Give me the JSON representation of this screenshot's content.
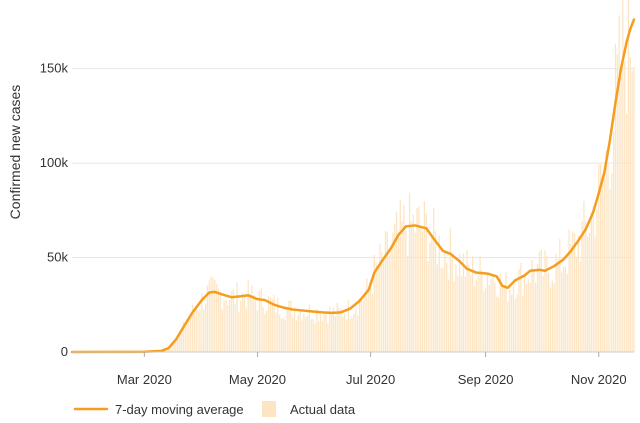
{
  "chart_data": {
    "type": "bar",
    "ylabel": "Confirmed new cases",
    "ylim": [
      0,
      180000
    ],
    "yticks": [
      0,
      50000,
      100000,
      150000
    ],
    "ytick_labels": [
      "0",
      "50k",
      "100k",
      "150k"
    ],
    "xlim": [
      "2020-01-22",
      "2020-11-20"
    ],
    "xticks": [
      "2020-03-01",
      "2020-05-01",
      "2020-07-01",
      "2020-09-01",
      "2020-11-01"
    ],
    "xtick_labels": [
      "Mar 2020",
      "May 2020",
      "Jul 2020",
      "Sep 2020",
      "Nov 2020"
    ],
    "grid": true,
    "legend_position": "bottom-left",
    "colors": {
      "line": "#f59d1e",
      "bars": "#fde5c3"
    },
    "series": [
      {
        "name": "7-day moving average",
        "kind": "line",
        "points": [
          [
            "2020-01-22",
            0
          ],
          [
            "2020-02-15",
            50
          ],
          [
            "2020-03-01",
            150
          ],
          [
            "2020-03-10",
            500
          ],
          [
            "2020-03-14",
            2000
          ],
          [
            "2020-03-18",
            6500
          ],
          [
            "2020-03-22",
            13000
          ],
          [
            "2020-03-27",
            21000
          ],
          [
            "2020-04-01",
            27500
          ],
          [
            "2020-04-05",
            31500
          ],
          [
            "2020-04-08",
            31800
          ],
          [
            "2020-04-12",
            30500
          ],
          [
            "2020-04-17",
            29000
          ],
          [
            "2020-04-22",
            29500
          ],
          [
            "2020-04-26",
            30000
          ],
          [
            "2020-05-01",
            28000
          ],
          [
            "2020-05-05",
            27500
          ],
          [
            "2020-05-10",
            25000
          ],
          [
            "2020-05-15",
            23500
          ],
          [
            "2020-05-20",
            22500
          ],
          [
            "2020-05-25",
            22000
          ],
          [
            "2020-05-30",
            21500
          ],
          [
            "2020-06-05",
            21000
          ],
          [
            "2020-06-10",
            20700
          ],
          [
            "2020-06-15",
            21000
          ],
          [
            "2020-06-20",
            23000
          ],
          [
            "2020-06-25",
            27000
          ],
          [
            "2020-06-30",
            33000
          ],
          [
            "2020-07-03",
            42000
          ],
          [
            "2020-07-07",
            48000
          ],
          [
            "2020-07-12",
            55000
          ],
          [
            "2020-07-16",
            62000
          ],
          [
            "2020-07-20",
            66500
          ],
          [
            "2020-07-25",
            67000
          ],
          [
            "2020-07-31",
            65500
          ],
          [
            "2020-08-04",
            60000
          ],
          [
            "2020-08-09",
            53500
          ],
          [
            "2020-08-13",
            52000
          ],
          [
            "2020-08-18",
            48000
          ],
          [
            "2020-08-22",
            44000
          ],
          [
            "2020-08-27",
            42000
          ],
          [
            "2020-09-02",
            41500
          ],
          [
            "2020-09-07",
            40000
          ],
          [
            "2020-09-10",
            35000
          ],
          [
            "2020-09-13",
            34000
          ],
          [
            "2020-09-17",
            38000
          ],
          [
            "2020-09-22",
            40500
          ],
          [
            "2020-09-25",
            43000
          ],
          [
            "2020-09-30",
            43500
          ],
          [
            "2020-10-03",
            43000
          ],
          [
            "2020-10-08",
            45500
          ],
          [
            "2020-10-13",
            49000
          ],
          [
            "2020-10-17",
            53500
          ],
          [
            "2020-10-21",
            59000
          ],
          [
            "2020-10-25",
            65000
          ],
          [
            "2020-10-29",
            74000
          ],
          [
            "2020-11-01",
            84000
          ],
          [
            "2020-11-04",
            95000
          ],
          [
            "2020-11-07",
            112000
          ],
          [
            "2020-11-10",
            132000
          ],
          [
            "2020-11-13",
            150000
          ],
          [
            "2020-11-16",
            164000
          ],
          [
            "2020-11-18",
            171000
          ],
          [
            "2020-11-20",
            176000
          ]
        ]
      },
      {
        "name": "Actual data",
        "kind": "bar"
      }
    ]
  }
}
